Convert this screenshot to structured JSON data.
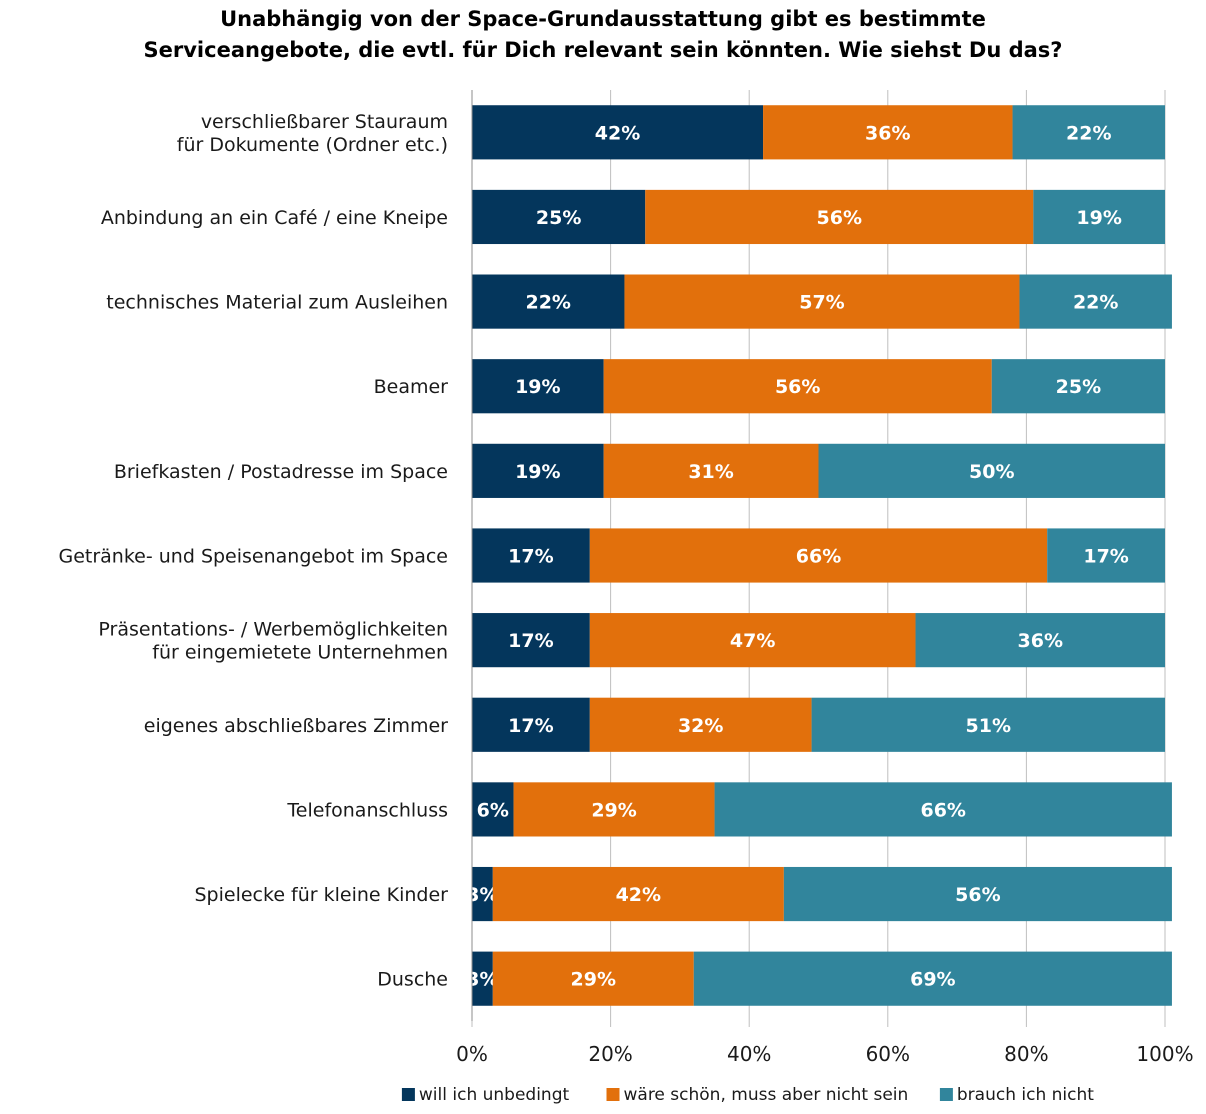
{
  "chart_data": {
    "type": "bar",
    "orientation": "horizontal",
    "stacked": true,
    "title_lines": [
      "Unabhängig von der Space-Grundausstattung gibt es bestimmte",
      "Serviceangebote, die evtl. für Dich relevant sein könnten. Wie siehst Du das?"
    ],
    "categories": [
      [
        "verschließbarer Stauraum",
        "für Dokumente (Ordner etc.)"
      ],
      [
        "Anbindung an ein Café / eine Kneipe"
      ],
      [
        "technisches Material zum Ausleihen"
      ],
      [
        "Beamer"
      ],
      [
        "Briefkasten / Postadresse im Space"
      ],
      [
        "Getränke- und Speisenangebot im Space"
      ],
      [
        "Präsentations- / Werbemöglichkeiten",
        "für eingemietete Unternehmen"
      ],
      [
        "eigenes abschließbares Zimmer"
      ],
      [
        "Telefonanschluss"
      ],
      [
        "Spielecke für kleine Kinder"
      ],
      [
        "Dusche"
      ]
    ],
    "series": [
      {
        "name": "will ich unbedingt",
        "color": "#04365c",
        "values": [
          42,
          25,
          22,
          19,
          19,
          17,
          17,
          17,
          6,
          3,
          3
        ]
      },
      {
        "name": "wäre schön, muss aber nicht sein",
        "color": "#e2700c",
        "values": [
          36,
          56,
          57,
          56,
          31,
          66,
          47,
          32,
          29,
          42,
          29
        ]
      },
      {
        "name": "brauch ich nicht",
        "color": "#31859c",
        "values": [
          22,
          19,
          22,
          25,
          50,
          17,
          36,
          51,
          66,
          56,
          69
        ]
      }
    ],
    "value_suffix": "%",
    "xlim": [
      0,
      100
    ],
    "xticks": [
      "0%",
      "20%",
      "40%",
      "60%",
      "80%",
      "100%"
    ],
    "grid": true,
    "legend_position": "bottom"
  }
}
